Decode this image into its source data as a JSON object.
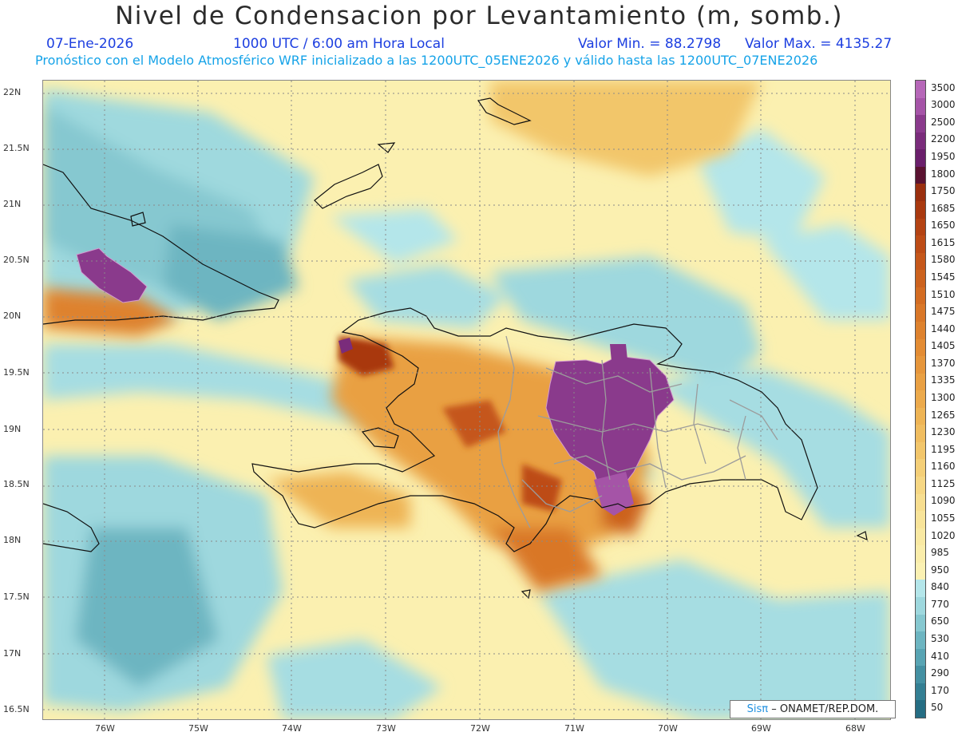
{
  "title": "Nivel de Condensacion por Levantamiento (m, somb.)",
  "date": "07-Ene-2026",
  "time": "1000 UTC / 6:00 am Hora Local",
  "min_label": "Valor Min. = 88.2798",
  "max_label": "Valor Max. = 4135.27",
  "forecast": "Pronóstico con el Modelo Atmosférico WRF inicializado a las 1200UTC_05ENE2026 y válido hasta las  1200UTC_07ENE2026",
  "credit": {
    "brand": "Sisπ",
    "org": "– ONAMET/REP.DOM."
  },
  "lat_ticks": [
    "22N",
    "21.5N",
    "21N",
    "20.5N",
    "20N",
    "19.5N",
    "19N",
    "18.5N",
    "18N",
    "17.5N",
    "17N",
    "16.5N"
  ],
  "lon_ticks": [
    "76W",
    "75W",
    "74W",
    "73W",
    "72W",
    "71W",
    "70W",
    "69W",
    "68W"
  ],
  "legend": {
    "labels": [
      "3500",
      "3000",
      "2500",
      "2200",
      "1950",
      "1800",
      "1750",
      "1685",
      "1650",
      "1615",
      "1580",
      "1545",
      "1510",
      "1475",
      "1440",
      "1405",
      "1370",
      "1335",
      "1300",
      "1265",
      "1230",
      "1195",
      "1160",
      "1125",
      "1090",
      "1055",
      "1020",
      "985",
      "950",
      "840",
      "770",
      "650",
      "530",
      "410",
      "290",
      "170",
      "50"
    ],
    "colors": [
      "#b667b8",
      "#a554a7",
      "#8a3a8c",
      "#7a2c7b",
      "#6a1f6b",
      "#5a1230",
      "#9a2f0e",
      "#a9390f",
      "#b44313",
      "#bd4c16",
      "#c5571a",
      "#cc621e",
      "#d36c22",
      "#d97728",
      "#de822e",
      "#e38c34",
      "#e6963b",
      "#e9a043",
      "#ecaa4c",
      "#eeb455",
      "#f0bd60",
      "#f2c66b",
      "#f4cf78",
      "#f6d784",
      "#f7de90",
      "#f8e49a",
      "#f9e9a3",
      "#faedab",
      "#fbf1b3",
      "#b4e6ea",
      "#9ed8de",
      "#86c8d0",
      "#6db5c1",
      "#58a4b3",
      "#4490a2",
      "#347f93",
      "#256d83"
    ]
  }
}
